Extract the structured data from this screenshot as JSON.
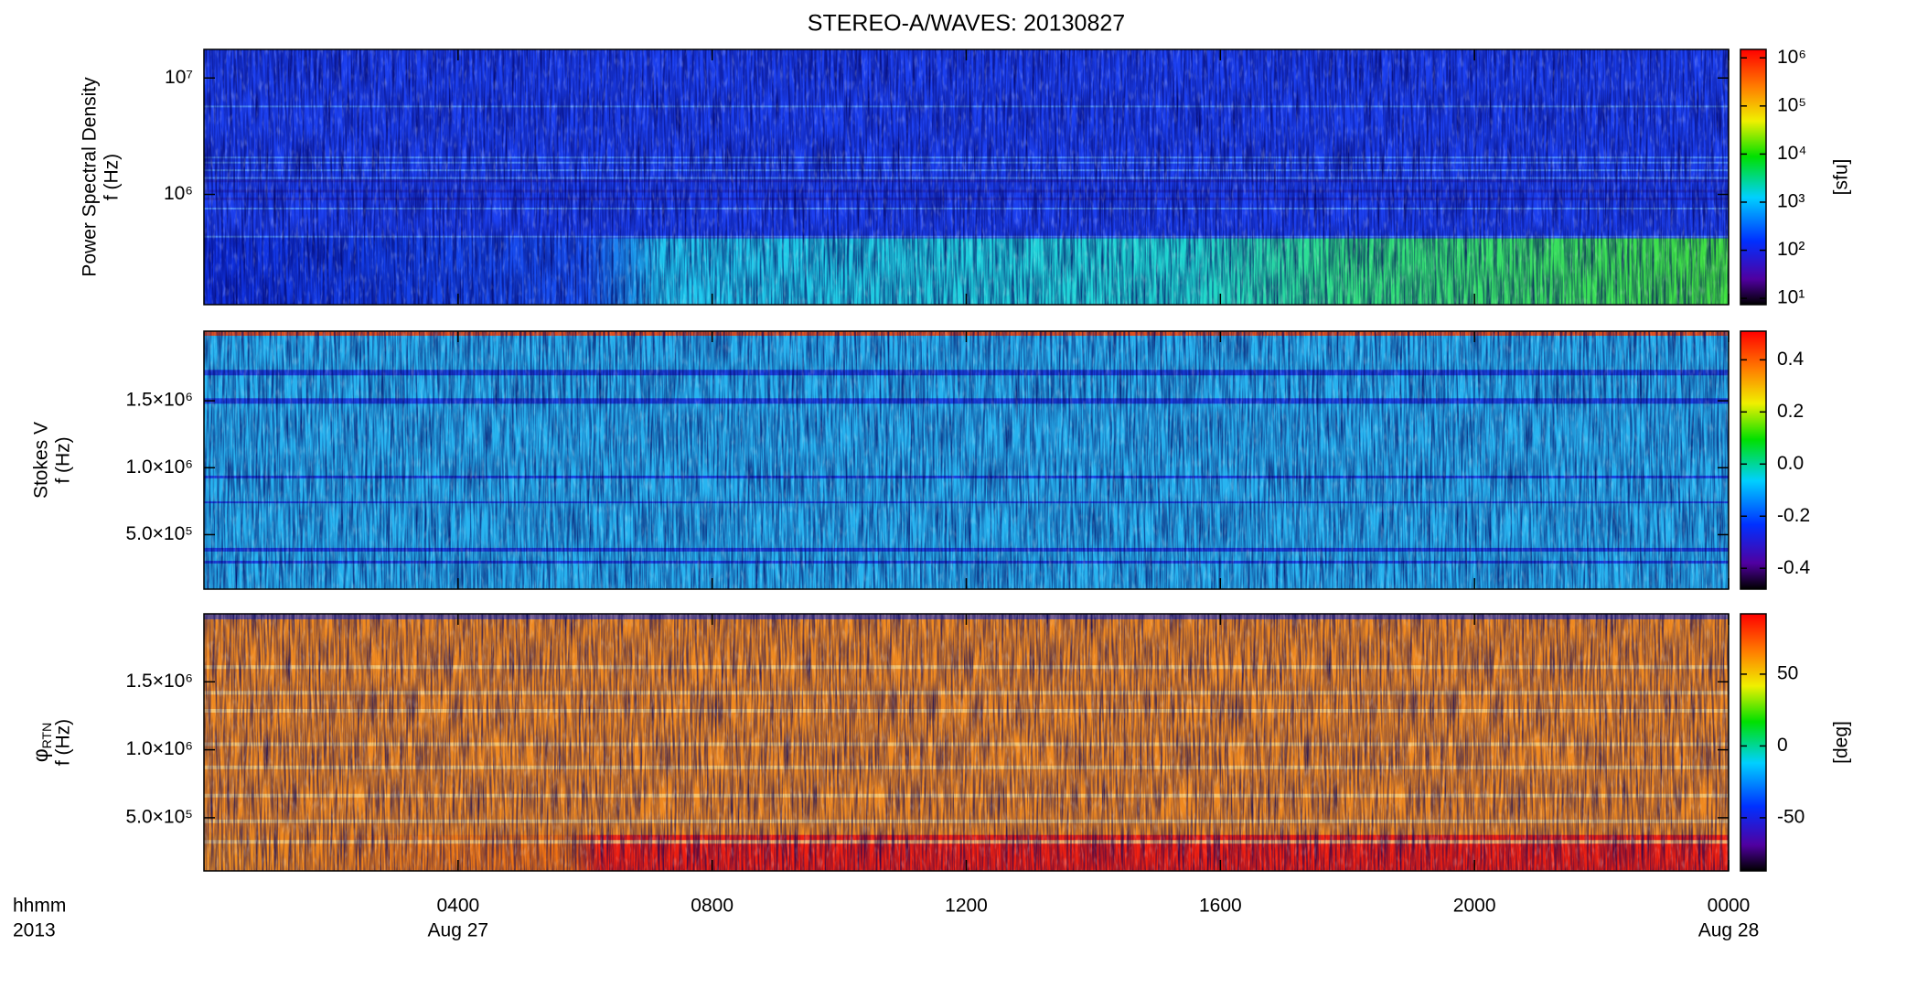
{
  "chart_data": [
    {
      "type": "heatmap",
      "title": "STEREO-A/WAVES: 20130827",
      "ylabel": [
        "Power Spectral Density",
        "f (Hz)"
      ],
      "ylog": true,
      "ylim": [
        113000,
        17600000
      ],
      "yticks": [
        {
          "value": 1000000,
          "label": "10⁶"
        },
        {
          "value": 10000000,
          "label": "10⁷"
        }
      ],
      "colorbar": {
        "log": true,
        "lim": [
          7.4,
          1500000
        ],
        "ticks": [
          {
            "value": 10,
            "label": "10¹"
          },
          {
            "value": 100,
            "label": "10²"
          },
          {
            "value": 1000,
            "label": "10³"
          },
          {
            "value": 10000,
            "label": "10⁴"
          },
          {
            "value": 100000,
            "label": "10⁵"
          },
          {
            "value": 1000000,
            "label": "10⁶"
          }
        ],
        "label": "[sfu]"
      }
    },
    {
      "type": "heatmap",
      "ylabel": [
        "Stokes V",
        "f (Hz)"
      ],
      "ylim": [
        93000,
        2020000
      ],
      "yticks": [
        {
          "value": 500000,
          "label": "5.0×10⁵"
        },
        {
          "value": 1000000,
          "label": "1.0×10⁶"
        },
        {
          "value": 1500000,
          "label": "1.5×10⁶"
        }
      ],
      "colorbar": {
        "lim": [
          -0.48,
          0.51
        ],
        "ticks": [
          -0.4,
          -0.2,
          {
            "value": 0,
            "label": "0.0"
          },
          0.2,
          0.4
        ]
      }
    },
    {
      "type": "heatmap",
      "ylabel": [
        {
          "symbol": "φ",
          "subscript": "RTN"
        },
        "f (Hz)"
      ],
      "ylim": [
        109000,
        2000000
      ],
      "yticks": [
        {
          "value": 500000,
          "label": "5.0×10⁵"
        },
        {
          "value": 1000000,
          "label": "1.0×10⁶"
        },
        {
          "value": 1500000,
          "label": "1.5×10⁶"
        }
      ],
      "colorbar": {
        "lim": [
          -87,
          92
        ],
        "ticks": [
          -50,
          0,
          50
        ],
        "label": "[deg]"
      },
      "xlim": [
        0,
        24
      ],
      "xticks": [
        {
          "value": 4,
          "label": "0400"
        },
        {
          "value": 8,
          "label": "0800"
        },
        {
          "value": 12,
          "label": "1200"
        },
        {
          "value": 16,
          "label": "1600"
        },
        {
          "value": 20,
          "label": "2000"
        },
        {
          "value": 24,
          "label": "0000"
        }
      ],
      "xdates": [
        {
          "value": 4,
          "label": "Aug 27"
        },
        {
          "value": 24,
          "label": "Aug 28"
        }
      ],
      "xlabel": [
        "hhmm",
        "2013"
      ]
    }
  ]
}
